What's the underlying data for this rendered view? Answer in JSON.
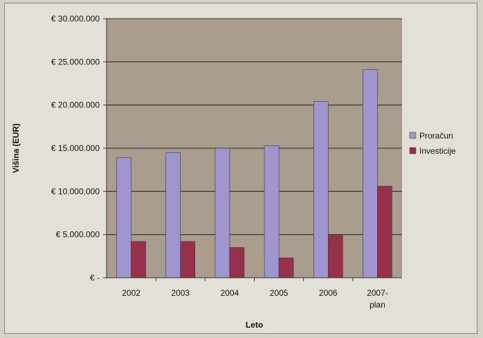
{
  "chart_data": {
    "type": "bar",
    "title": "",
    "xlabel": "Leto",
    "ylabel": "Višina (EUR)",
    "categories": [
      [
        "2002"
      ],
      [
        "2003"
      ],
      [
        "2004"
      ],
      [
        "2005"
      ],
      [
        "2006"
      ],
      [
        "2007-",
        "plan"
      ]
    ],
    "series": [
      {
        "name": "Proračun",
        "color": "#9f95cf",
        "values": [
          13900000,
          14500000,
          15000000,
          15300000,
          20400000,
          24100000
        ]
      },
      {
        "name": "Investicije",
        "color": "#97304a",
        "values": [
          4200000,
          4200000,
          3500000,
          2300000,
          4900000,
          10600000
        ]
      }
    ],
    "ylim": [
      0,
      30000000
    ],
    "yticks": [
      {
        "value": 0,
        "label": "€ -"
      },
      {
        "value": 5000000,
        "label": "€ 5.000.000"
      },
      {
        "value": 10000000,
        "label": "€ 10.000.000"
      },
      {
        "value": 15000000,
        "label": "€ 15.000.000"
      },
      {
        "value": 20000000,
        "label": "€ 20.000.000"
      },
      {
        "value": 25000000,
        "label": "€ 25.000.000"
      },
      {
        "value": 30000000,
        "label": "€ 30.000.000"
      }
    ],
    "grid": true,
    "legend_position": "right",
    "plot_background": "#aa9d8e"
  }
}
